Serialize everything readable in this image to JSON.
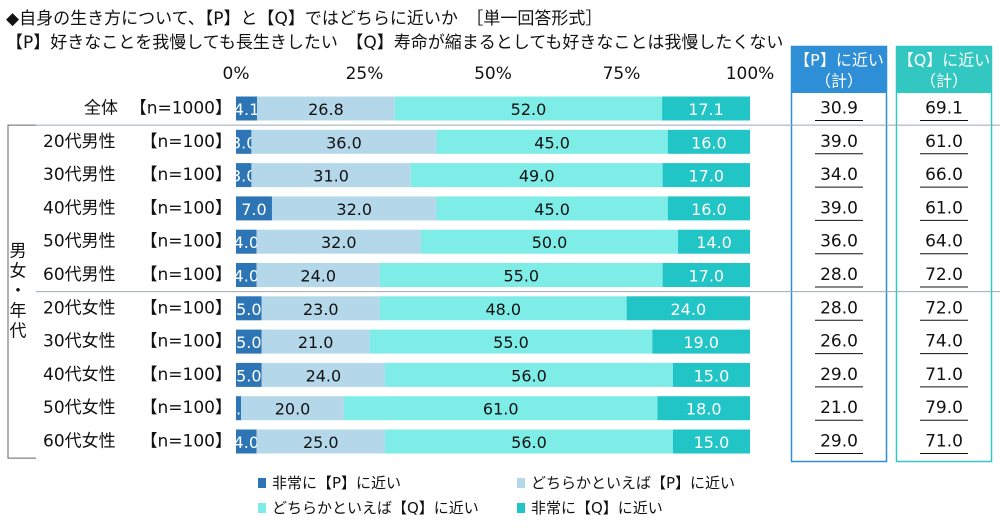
{
  "header": {
    "title": "◆自身の生き方について、【P】と【Q】ではどちらに近いか　［単一回答形式］",
    "subtitle": "【P】好きなことを我慢しても長生きしたい　【Q】寿命が縮まるとしても好きなことは我慢したくない"
  },
  "colors": {
    "p_strong": "#2e75b6",
    "p_weak": "#b4d8ea",
    "q_weak": "#7eede8",
    "q_strong": "#22c5c5",
    "p_box": "#2e8fd6",
    "q_box": "#33c7c1",
    "divider": "#9aa9b6"
  },
  "group_label": "男女・年代",
  "columns": {
    "p_header": [
      "【P】に近い",
      "（計）"
    ],
    "q_header": [
      "【Q】に近い",
      "（計）"
    ]
  },
  "chart_data": {
    "type": "bar",
    "orientation": "horizontal",
    "stacked": true,
    "percent": true,
    "xlim": [
      0,
      100
    ],
    "x_ticks": [
      "0%",
      "25%",
      "50%",
      "75%",
      "100%"
    ],
    "categories": [
      "全体",
      "20代男性",
      "30代男性",
      "40代男性",
      "50代男性",
      "60代男性",
      "20代女性",
      "30代女性",
      "40代女性",
      "50代女性",
      "60代女性"
    ],
    "n_labels": [
      "【n=1000】",
      "【n=100】",
      "【n=100】",
      "【n=100】",
      "【n=100】",
      "【n=100】",
      "【n=100】",
      "【n=100】",
      "【n=100】",
      "【n=100】",
      "【n=100】"
    ],
    "series": [
      {
        "name": "非常に【P】に近い",
        "values": [
          4.1,
          3.0,
          3.0,
          7.0,
          4.0,
          4.0,
          5.0,
          5.0,
          5.0,
          1.0,
          4.0
        ]
      },
      {
        "name": "どちらかといえば【P】に近い",
        "values": [
          26.8,
          36.0,
          31.0,
          32.0,
          32.0,
          24.0,
          23.0,
          21.0,
          24.0,
          20.0,
          25.0
        ]
      },
      {
        "name": "どちらかといえば【Q】に近い",
        "values": [
          52.0,
          45.0,
          49.0,
          45.0,
          50.0,
          55.0,
          48.0,
          55.0,
          56.0,
          61.0,
          56.0
        ]
      },
      {
        "name": "非常に【Q】に近い",
        "values": [
          17.1,
          16.0,
          17.0,
          16.0,
          14.0,
          17.0,
          24.0,
          19.0,
          15.0,
          18.0,
          15.0
        ]
      }
    ],
    "p_total": [
      30.9,
      39.0,
      34.0,
      39.0,
      36.0,
      28.0,
      28.0,
      26.0,
      29.0,
      21.0,
      29.0
    ],
    "q_total": [
      69.1,
      61.0,
      66.0,
      61.0,
      64.0,
      72.0,
      72.0,
      74.0,
      71.0,
      79.0,
      71.0
    ],
    "legend_position": "bottom",
    "legend_order": [
      0,
      1,
      2,
      3
    ]
  }
}
